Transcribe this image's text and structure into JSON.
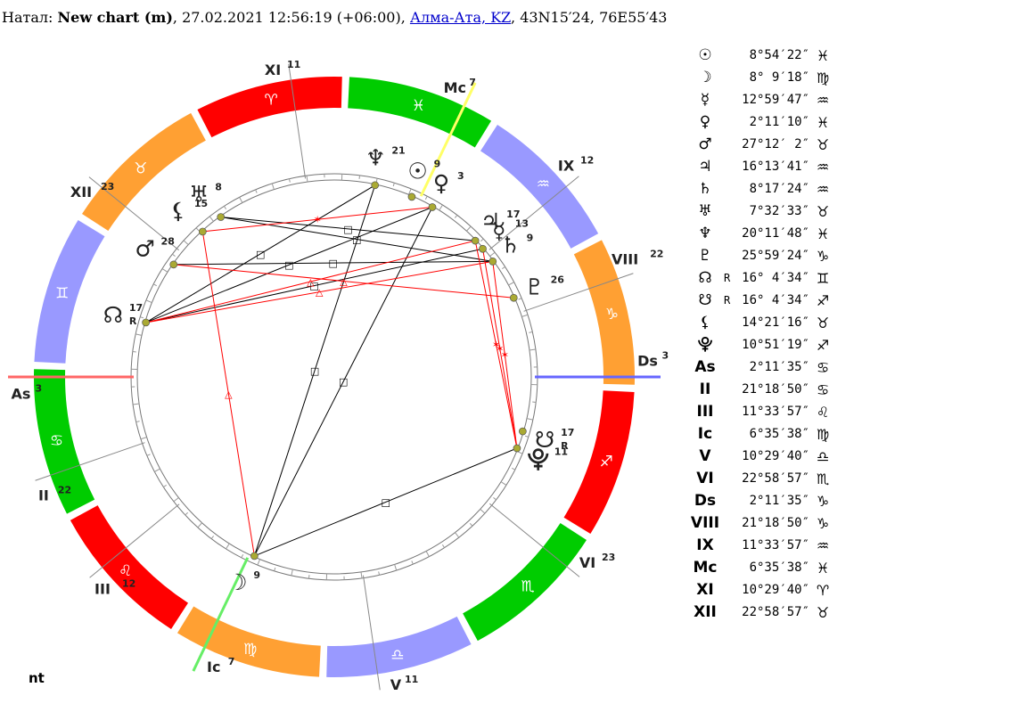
{
  "header": {
    "prefix": "Натал: ",
    "name": "New chart (m)",
    "datetime": ", 27.02.2021 12:56:19 (+06:00), ",
    "place": "Алма-Ата, KZ",
    "coords": ", 43N15′24, 76E55′43"
  },
  "footer": {
    "label": "nt"
  },
  "colors": {
    "fire": "#ff0000",
    "earth": "#ffa033",
    "air": "#9999ff",
    "water": "#00cc00",
    "mc_axis": "#ffff66",
    "ic_axis": "#66ee66",
    "as_axis": "#ff6666",
    "ds_axis": "#6666ff"
  },
  "zodiac": [
    {
      "sign": "♈",
      "start": 0
    },
    {
      "sign": "♉",
      "start": 30
    },
    {
      "sign": "♊",
      "start": 60
    },
    {
      "sign": "♋",
      "start": 90
    },
    {
      "sign": "♌",
      "start": 120
    },
    {
      "sign": "♍",
      "start": 150
    },
    {
      "sign": "♎",
      "start": 180
    },
    {
      "sign": "♏",
      "start": 210
    },
    {
      "sign": "♐",
      "start": 240
    },
    {
      "sign": "♑",
      "start": 270
    },
    {
      "sign": "♒",
      "start": 300
    },
    {
      "sign": "♓",
      "start": 330
    }
  ],
  "ascendant_lon": 92.19,
  "houses": [
    {
      "label": "As",
      "deg": "3",
      "lon": 92.19
    },
    {
      "label": "II",
      "deg": "22",
      "lon": 111.31
    },
    {
      "label": "III",
      "deg": "12",
      "lon": 131.57
    },
    {
      "label": "Ic",
      "deg": "7",
      "lon": 156.59
    },
    {
      "label": "V",
      "deg": "11",
      "lon": 190.49
    },
    {
      "label": "VI",
      "deg": "23",
      "lon": 232.98
    },
    {
      "label": "Ds",
      "deg": "3",
      "lon": 272.19
    },
    {
      "label": "VIII",
      "deg": "22",
      "lon": 291.31
    },
    {
      "label": "IX",
      "deg": "12",
      "lon": 311.57
    },
    {
      "label": "Mc",
      "deg": "7",
      "lon": 336.59
    },
    {
      "label": "XI",
      "deg": "11",
      "lon": 10.49
    },
    {
      "label": "XII",
      "deg": "23",
      "lon": 52.98
    }
  ],
  "planets": [
    {
      "glyph": "☉",
      "deg": "9",
      "lon": 338.91,
      "retro": ""
    },
    {
      "glyph": "☽",
      "deg": "9",
      "lon": 158.15,
      "retro": ""
    },
    {
      "glyph": "☿",
      "deg": "13",
      "lon": 312.99,
      "retro": ""
    },
    {
      "glyph": "♀",
      "deg": "3",
      "lon": 332.19,
      "retro": ""
    },
    {
      "glyph": "♂",
      "deg": "28",
      "lon": 57.2,
      "retro": ""
    },
    {
      "glyph": "♃",
      "deg": "17",
      "lon": 316.22,
      "retro": ""
    },
    {
      "glyph": "♄",
      "deg": "9",
      "lon": 308.29,
      "retro": ""
    },
    {
      "glyph": "♅",
      "deg": "8",
      "lon": 37.54,
      "retro": ""
    },
    {
      "glyph": "♆",
      "deg": "21",
      "lon": 350.2,
      "retro": ""
    },
    {
      "glyph": "♇",
      "deg": "26",
      "lon": 295.99,
      "retro": ""
    },
    {
      "glyph": "☊",
      "deg": "17",
      "lon": 76.08,
      "retro": "R"
    },
    {
      "glyph": "☋",
      "deg": "17",
      "lon": 256.08,
      "retro": "R"
    },
    {
      "glyph": "⚸",
      "deg": "15",
      "lon": 44.35,
      "retro": ""
    },
    {
      "glyph": "⯓",
      "deg": "11",
      "lon": 250.86,
      "retro": ""
    }
  ],
  "aspects": [
    {
      "a": 8,
      "b": 1,
      "color": "#000",
      "mark": "□"
    },
    {
      "a": 3,
      "b": 1,
      "color": "#000",
      "mark": "□"
    },
    {
      "a": 7,
      "b": 5,
      "color": "#000",
      "mark": "□"
    },
    {
      "a": 7,
      "b": 6,
      "color": "#000",
      "mark": "□"
    },
    {
      "a": 4,
      "b": 6,
      "color": "#000",
      "mark": "□"
    },
    {
      "a": 10,
      "b": 8,
      "color": "#000",
      "mark": "□"
    },
    {
      "a": 10,
      "b": 3,
      "color": "#000",
      "mark": "□"
    },
    {
      "a": 13,
      "b": 1,
      "color": "#000",
      "mark": "□"
    },
    {
      "a": 10,
      "b": 2,
      "color": "#000",
      "mark": "□"
    },
    {
      "a": 12,
      "b": 3,
      "color": "#ff0000",
      "mark": "✶"
    },
    {
      "a": 4,
      "b": 9,
      "color": "#ff0000",
      "mark": "△"
    },
    {
      "a": 10,
      "b": 5,
      "color": "#ff0000",
      "mark": "△"
    },
    {
      "a": 10,
      "b": 6,
      "color": "#ff0000",
      "mark": "△"
    },
    {
      "a": 12,
      "b": 1,
      "color": "#ff0000",
      "mark": "△"
    },
    {
      "a": 5,
      "b": 13,
      "color": "#ff0000",
      "mark": "✶"
    },
    {
      "a": 6,
      "b": 13,
      "color": "#ff0000",
      "mark": "✶"
    },
    {
      "a": 2,
      "b": 13,
      "color": "#ff0000",
      "mark": "✶"
    }
  ],
  "positions": [
    {
      "glyph": "☉",
      "r": "",
      "value": "8°54′22″",
      "sign": "♓"
    },
    {
      "glyph": "☽",
      "r": "",
      "value": "8° 9′18″",
      "sign": "♍"
    },
    {
      "glyph": "☿",
      "r": "",
      "value": "12°59′47″",
      "sign": "♒"
    },
    {
      "glyph": "♀",
      "r": "",
      "value": "2°11′10″",
      "sign": "♓"
    },
    {
      "glyph": "♂",
      "r": "",
      "value": "27°12′ 2″",
      "sign": "♉"
    },
    {
      "glyph": "♃",
      "r": "",
      "value": "16°13′41″",
      "sign": "♒"
    },
    {
      "glyph": "♄",
      "r": "",
      "value": "8°17′24″",
      "sign": "♒"
    },
    {
      "glyph": "♅",
      "r": "",
      "value": "7°32′33″",
      "sign": "♉"
    },
    {
      "glyph": "♆",
      "r": "",
      "value": "20°11′48″",
      "sign": "♓"
    },
    {
      "glyph": "♇",
      "r": "",
      "value": "25°59′24″",
      "sign": "♑"
    },
    {
      "glyph": "☊",
      "r": "R",
      "value": "16° 4′34″",
      "sign": "♊"
    },
    {
      "glyph": "☋",
      "r": "R",
      "value": "16° 4′34″",
      "sign": "♐"
    },
    {
      "glyph": "⚸",
      "r": "",
      "value": "14°21′16″",
      "sign": "♉"
    },
    {
      "glyph": "⯓",
      "r": "",
      "value": "10°51′19″",
      "sign": "♐"
    },
    {
      "glyph": "As",
      "r": "",
      "value": "2°11′35″",
      "sign": "♋"
    },
    {
      "glyph": "II",
      "r": "",
      "value": "21°18′50″",
      "sign": "♋"
    },
    {
      "glyph": "III",
      "r": "",
      "value": "11°33′57″",
      "sign": "♌"
    },
    {
      "glyph": "Ic",
      "r": "",
      "value": "6°35′38″",
      "sign": "♍"
    },
    {
      "glyph": "V",
      "r": "",
      "value": "10°29′40″",
      "sign": "♎"
    },
    {
      "glyph": "VI",
      "r": "",
      "value": "22°58′57″",
      "sign": "♏"
    },
    {
      "glyph": "Ds",
      "r": "",
      "value": "2°11′35″",
      "sign": "♑"
    },
    {
      "glyph": "VIII",
      "r": "",
      "value": "21°18′50″",
      "sign": "♑"
    },
    {
      "glyph": "IX",
      "r": "",
      "value": "11°33′57″",
      "sign": "♒"
    },
    {
      "glyph": "Mc",
      "r": "",
      "value": "6°35′38″",
      "sign": "♓"
    },
    {
      "glyph": "XI",
      "r": "",
      "value": "10°29′40″",
      "sign": "♈"
    },
    {
      "glyph": "XII",
      "r": "",
      "value": "22°58′57″",
      "sign": "♉"
    }
  ]
}
